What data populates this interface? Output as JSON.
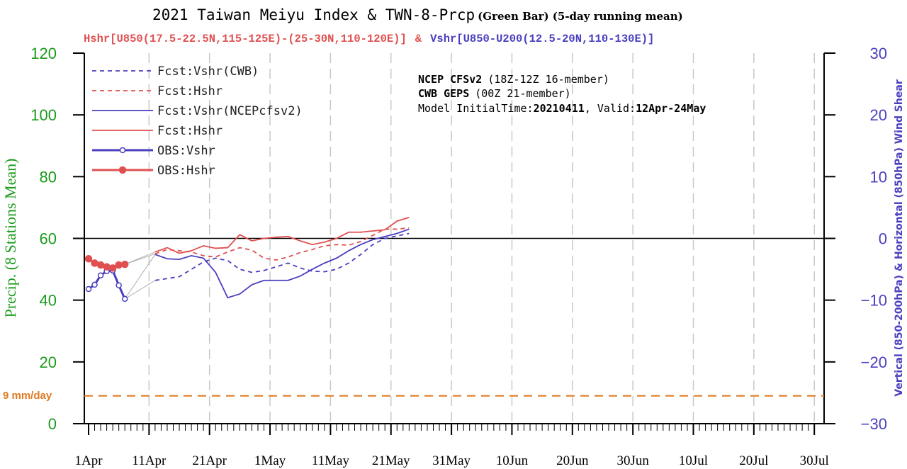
{
  "header": {
    "title_main": "2021 Taiwan Meiyu Index & TWN-8-Prcp",
    "title_small": "(Green Bar) (5-day running mean)",
    "subtitle_h": "Hshr[U850(17.5-22.5N,115-125E)-(25-30N,110-120E)]",
    "subtitle_amp": "&",
    "subtitle_v": "Vshr[U850-U200(12.5-20N,110-130E)]"
  },
  "info": {
    "line1_bold": "NCEP CFSv2",
    "line1_rest": "(18Z-12Z 16-member)",
    "line2_bold": "CWB GEPS",
    "line2_rest": "(00Z 21-member)",
    "line3_prefix": "Model InitialTime:",
    "line3_init": "20210411",
    "line3_mid": ", Valid:",
    "line3_valid": "12Apr-24May"
  },
  "reference_label": "9 mm/day",
  "colors": {
    "red": "#e05050",
    "blue": "#4a3fbf",
    "green": "#1a9a1a",
    "orange": "#e07a20",
    "grid": "#c8c8c8"
  },
  "chart_data": {
    "type": "line",
    "title": "2021 Taiwan Meiyu Index & TWN-8-Prcp (Green Bar) (5-day running mean)",
    "xlabel": "",
    "ylabel_left": "Precip. (8 Stations Mean)",
    "ylabel_right": "Vertical (850-200hPa) & Horizontal (850hPa) Wind Shear",
    "ylim_left": [
      0,
      120
    ],
    "ylim_right": [
      -30,
      30
    ],
    "yticks_left": [
      0,
      20,
      40,
      60,
      80,
      100,
      120
    ],
    "yticks_right": [
      -30,
      -20,
      -10,
      0,
      10,
      20,
      30
    ],
    "x_range_days": [
      0,
      121
    ],
    "x_major_ticks": [
      {
        "day": 0,
        "label": "1Apr"
      },
      {
        "day": 10,
        "label": "11Apr"
      },
      {
        "day": 20,
        "label": "21Apr"
      },
      {
        "day": 30,
        "label": "1May"
      },
      {
        "day": 40,
        "label": "11May"
      },
      {
        "day": 50,
        "label": "21May"
      },
      {
        "day": 60,
        "label": "31May"
      },
      {
        "day": 70,
        "label": "10Jun"
      },
      {
        "day": 80,
        "label": "20Jun"
      },
      {
        "day": 90,
        "label": "30Jun"
      },
      {
        "day": 100,
        "label": "10Jul"
      },
      {
        "day": 110,
        "label": "20Jul"
      },
      {
        "day": 120,
        "label": "30Jul"
      }
    ],
    "reference_line_precip": 9,
    "zero_line_shear": 0,
    "grid": "vertical dashed",
    "legend_placement": "top-left",
    "series": [
      {
        "name": "Fcst:Vshr(CWB)",
        "style": "dashed",
        "color": "#4a3fbf",
        "x": [
          11,
          13,
          15,
          17,
          19,
          21,
          23,
          25,
          27,
          29,
          31,
          33,
          35,
          37,
          39,
          41,
          43,
          45,
          47,
          49,
          51,
          53
        ],
        "y": [
          -6.8,
          -6.5,
          -6.2,
          -5.0,
          -3.8,
          -3.2,
          -3.6,
          -5.0,
          -5.5,
          -5.2,
          -4.6,
          -4.0,
          -4.8,
          -5.3,
          -5.4,
          -5.0,
          -4.0,
          -2.6,
          -1.0,
          0.0,
          0.4,
          0.8
        ]
      },
      {
        "name": "Fcst:Hshr",
        "style": "dashed",
        "color": "#e05050",
        "x": [
          11,
          13,
          15,
          17,
          19,
          21,
          23,
          25,
          27,
          29,
          31,
          33,
          35,
          37,
          39,
          41,
          43,
          45,
          47,
          49,
          51,
          53
        ],
        "y": [
          -2.5,
          -1.8,
          -2.0,
          -2.2,
          -2.8,
          -3.0,
          -2.2,
          -1.5,
          -1.9,
          -3.2,
          -3.5,
          -3.0,
          -2.3,
          -1.8,
          -1.2,
          -1.0,
          -1.1,
          -0.5,
          0.5,
          1.5,
          1.5,
          1.7
        ]
      },
      {
        "name": "Fcst:Vshr(NCEPcfsv2)",
        "style": "solid",
        "color": "#4a3fbf",
        "x": [
          11,
          13,
          15,
          17,
          19,
          21,
          23,
          25,
          27,
          29,
          31,
          33,
          35,
          37,
          39,
          41,
          43,
          45,
          47,
          49,
          51,
          53
        ],
        "y": [
          -2.6,
          -3.3,
          -3.4,
          -2.8,
          -3.2,
          -5.5,
          -9.6,
          -9.0,
          -7.5,
          -6.8,
          -6.8,
          -6.8,
          -6.1,
          -5.0,
          -4.0,
          -3.2,
          -2.0,
          -1.0,
          -0.2,
          0.3,
          0.8,
          1.5
        ]
      },
      {
        "name": "Fcst:Hshr",
        "style": "solid",
        "color": "#e05050",
        "x": [
          11,
          13,
          15,
          17,
          19,
          21,
          23,
          25,
          27,
          29,
          31,
          33,
          35,
          37,
          39,
          41,
          43,
          45,
          47,
          49,
          51,
          53
        ],
        "y": [
          -2.2,
          -1.5,
          -2.4,
          -2.0,
          -1.2,
          -1.6,
          -1.5,
          0.6,
          -0.4,
          0.0,
          0.2,
          0.3,
          -0.4,
          -1.0,
          -0.6,
          0.0,
          1.0,
          1.0,
          1.2,
          1.4,
          2.8,
          3.4
        ]
      },
      {
        "name": "OBS:Vshr",
        "style": "solid-circles-open",
        "color": "#4a3fbf",
        "x": [
          0,
          1,
          2,
          3,
          4,
          5,
          6
        ],
        "y": [
          -8.2,
          -7.5,
          -6.0,
          -5.3,
          -5.2,
          -7.6,
          -9.8
        ]
      },
      {
        "name": "OBS:Hshr",
        "style": "solid-circles-filled",
        "color": "#e05050",
        "x": [
          0,
          1,
          2,
          3,
          4,
          5,
          6
        ],
        "y": [
          -3.3,
          -4.0,
          -4.3,
          -4.6,
          -4.8,
          -4.3,
          -4.2
        ]
      }
    ]
  }
}
